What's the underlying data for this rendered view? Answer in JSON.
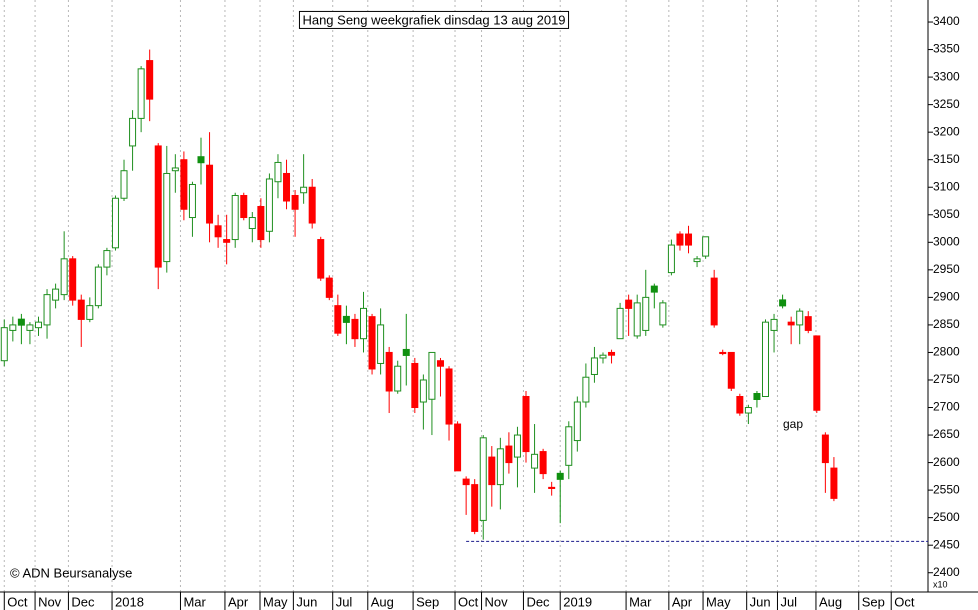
{
  "chart_data": {
    "type": "candlestick",
    "title": "Hang Seng weekgrafiek dinsdag 13 aug 2019",
    "credit": "© ADN Beursanalyse",
    "axis_note": "x10",
    "annotations": [
      "gap"
    ],
    "reference_line": 2457,
    "colors": {
      "up": "#ffffff",
      "up_edge": "#1f8f1f",
      "down": "#ff0000",
      "flat": "#109010",
      "reference": "#1a1a8c"
    },
    "xlim": [
      -0.5,
      108
    ],
    "xticks": [
      {
        "value": 0,
        "label": "Oct"
      },
      {
        "value": 3.6,
        "label": "Nov"
      },
      {
        "value": 7.5,
        "label": "Dec"
      },
      {
        "value": 12.6,
        "label": "2018"
      },
      {
        "value": 20.6,
        "label": "Mar"
      },
      {
        "value": 25.8,
        "label": "Apr"
      },
      {
        "value": 29.9,
        "label": "May"
      },
      {
        "value": 33.8,
        "label": "Jun"
      },
      {
        "value": 38.4,
        "label": "Jul"
      },
      {
        "value": 42.5,
        "label": "Aug"
      },
      {
        "value": 47.8,
        "label": "Sep"
      },
      {
        "value": 52.7,
        "label": "Oct"
      },
      {
        "value": 55.8,
        "label": "Nov"
      },
      {
        "value": 60.7,
        "label": "Dec"
      },
      {
        "value": 65.0,
        "label": "2019"
      },
      {
        "value": 72.7,
        "label": "Mar"
      },
      {
        "value": 77.7,
        "label": "Apr"
      },
      {
        "value": 81.7,
        "label": "May"
      },
      {
        "value": 86.8,
        "label": "Jun"
      },
      {
        "value": 90.4,
        "label": "Jul"
      },
      {
        "value": 94.9,
        "label": "Aug"
      },
      {
        "value": 99.9,
        "label": "Sep"
      },
      {
        "value": 103.7,
        "label": "Oct"
      }
    ],
    "ylim": [
      2365,
      3440
    ],
    "yticks": [
      2400,
      2450,
      2500,
      2550,
      2600,
      2650,
      2700,
      2750,
      2800,
      2850,
      2900,
      2950,
      3000,
      3050,
      3100,
      3150,
      3200,
      3250,
      3300,
      3350,
      3400
    ],
    "open": [
      2785,
      2840,
      2855,
      2840,
      2845,
      2850,
      2895,
      2905,
      2970,
      2895,
      2860,
      2885,
      2955,
      2990,
      3080,
      3175,
      3225,
      3330,
      3175,
      2965,
      3130,
      3150,
      3045,
      3150,
      3140,
      3030,
      3005,
      3005,
      3085,
      3025,
      3065,
      3020,
      3110,
      3125,
      3085,
      3090,
      3100,
      3005,
      2935,
      2885,
      2860,
      2860,
      2825,
      2865,
      2780,
      2800,
      2730,
      2800,
      2780,
      2710,
      2715,
      2785,
      2770,
      2670,
      2570,
      2560,
      2495,
      2610,
      2560,
      2630,
      2610,
      2720,
      2590,
      2620,
      2555,
      2575,
      2595,
      2640,
      2710,
      2760,
      2790,
      2800,
      2825,
      2895,
      2830,
      2840,
      2915,
      2850,
      2945,
      3015,
      3015,
      2965,
      2975,
      2935,
      2800,
      2800,
      2720,
      2690,
      2720,
      2720,
      2840,
      2890,
      2855,
      2850,
      2865,
      2830,
      2650,
      2590
    ],
    "high": [
      2860,
      2865,
      2870,
      2855,
      2865,
      2915,
      2925,
      3020,
      2975,
      2905,
      2900,
      2960,
      2990,
      3085,
      3150,
      3240,
      3320,
      3350,
      3180,
      3175,
      3160,
      3165,
      3110,
      3190,
      3200,
      3050,
      3050,
      3090,
      3090,
      3055,
      3080,
      3125,
      3160,
      3150,
      3095,
      3160,
      3115,
      3010,
      2940,
      2905,
      2885,
      2870,
      2910,
      2870,
      2880,
      2810,
      2785,
      2870,
      2790,
      2760,
      2800,
      2790,
      2775,
      2675,
      2575,
      2570,
      2650,
      2630,
      2645,
      2655,
      2665,
      2730,
      2670,
      2625,
      2565,
      2585,
      2675,
      2720,
      2780,
      2810,
      2800,
      2805,
      2890,
      2905,
      2905,
      2950,
      2925,
      2895,
      3005,
      3020,
      3030,
      2975,
      3010,
      2950,
      2805,
      2800,
      2725,
      2705,
      2730,
      2860,
      2870,
      2905,
      2865,
      2880,
      2875,
      2830,
      2655,
      2610
    ],
    "low": [
      2775,
      2820,
      2815,
      2815,
      2830,
      2825,
      2880,
      2895,
      2885,
      2810,
      2855,
      2880,
      2940,
      2985,
      3075,
      3130,
      3200,
      3220,
      2915,
      2945,
      3090,
      3040,
      3010,
      3105,
      3000,
      2990,
      2960,
      2990,
      3040,
      3000,
      2990,
      3000,
      3080,
      3060,
      3010,
      3070,
      3025,
      2930,
      2895,
      2830,
      2815,
      2810,
      2800,
      2760,
      2760,
      2690,
      2725,
      2740,
      2690,
      2660,
      2650,
      2720,
      2640,
      2585,
      2505,
      2470,
      2460,
      2520,
      2515,
      2580,
      2555,
      2600,
      2545,
      2570,
      2540,
      2490,
      2570,
      2620,
      2700,
      2745,
      2780,
      2780,
      2825,
      2830,
      2825,
      2830,
      2880,
      2845,
      2940,
      2985,
      2980,
      2955,
      2970,
      2845,
      2795,
      2730,
      2685,
      2670,
      2700,
      2720,
      2800,
      2880,
      2815,
      2815,
      2835,
      2690,
      2545,
      2530
    ],
    "close": [
      2845,
      2850,
      2855,
      2850,
      2855,
      2905,
      2915,
      2970,
      2895,
      2860,
      2885,
      2955,
      2985,
      3080,
      3130,
      3225,
      3315,
      3260,
      2955,
      3125,
      3135,
      3060,
      3105,
      3150,
      3035,
      3010,
      3000,
      3085,
      3045,
      3045,
      3005,
      3115,
      3145,
      3075,
      3060,
      3100,
      3035,
      2935,
      2900,
      2835,
      2860,
      2825,
      2880,
      2770,
      2850,
      2730,
      2775,
      2800,
      2700,
      2750,
      2800,
      2775,
      2670,
      2585,
      2560,
      2475,
      2645,
      2560,
      2625,
      2600,
      2650,
      2620,
      2615,
      2580,
      2553,
      2575,
      2665,
      2710,
      2755,
      2790,
      2795,
      2795,
      2880,
      2880,
      2890,
      2900,
      2915,
      2890,
      2995,
      2995,
      2995,
      2970,
      3010,
      2850,
      2798,
      2735,
      2690,
      2700,
      2720,
      2855,
      2860,
      2890,
      2850,
      2875,
      2840,
      2695,
      2600,
      2535
    ]
  }
}
